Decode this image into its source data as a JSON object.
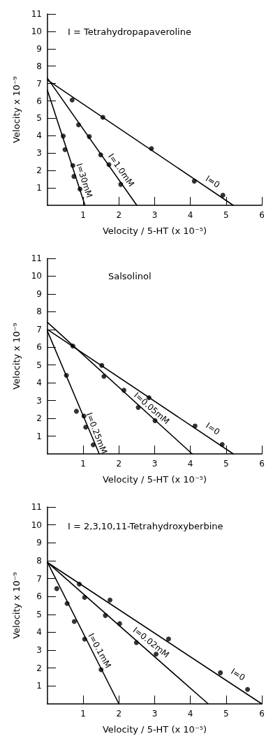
{
  "chart_data": [
    {
      "type": "scatter",
      "title": "I = Tetrahydropapaveroline",
      "xlabel": "Velocity / 5-HT (x 10⁻⁵)",
      "ylabel": "Velocity x 10⁻⁹",
      "xlim": [
        0,
        6
      ],
      "xticks": [
        1,
        2,
        3,
        4,
        5,
        6
      ],
      "ylim": [
        0,
        11
      ],
      "yticks": [
        1,
        2,
        3,
        4,
        5,
        6,
        7,
        8,
        9,
        10,
        11
      ],
      "series": [
        {
          "name": "I=0",
          "color": "#000000",
          "marker": "circle",
          "x": [
            0.69,
            1.55,
            2.91,
            4.11,
            4.91
          ],
          "values": [
            6.05,
            5.06,
            3.26,
            1.39,
            0.58
          ]
        },
        {
          "name": "I=1.0mM",
          "color": "#000000",
          "marker": "circle",
          "x": [
            0.87,
            1.17,
            1.49,
            1.72,
            2.05
          ],
          "values": [
            4.63,
            3.95,
            2.9,
            2.34,
            1.2
          ]
        },
        {
          "name": "I=30mM",
          "color": "#000000",
          "marker": "circle",
          "x": [
            0.44,
            0.49,
            0.71,
            0.74,
            0.91
          ],
          "values": [
            3.98,
            3.2,
            2.29,
            1.66,
            0.93
          ]
        },
        {
          "type": "line",
          "color": "#000000",
          "marker": "none",
          "x": [
            0,
            5.2
          ],
          "values": [
            7.2,
            0
          ]
        },
        {
          "type": "line",
          "color": "#000000",
          "marker": "none",
          "x": [
            0,
            2.5
          ],
          "values": [
            7.3,
            0
          ]
        },
        {
          "type": "line",
          "color": "#000000",
          "marker": "none",
          "x": [
            0,
            1.05
          ],
          "values": [
            6.6,
            0
          ]
        }
      ]
    },
    {
      "type": "scatter",
      "title": "Salsolinol",
      "xlabel": "Velocity / 5-HT (x 10⁻⁵)",
      "ylabel": "Velocity x 10⁻⁹",
      "xlim": [
        0,
        6
      ],
      "xticks": [
        1,
        2,
        3,
        4,
        5,
        6
      ],
      "ylim": [
        0,
        11
      ],
      "yticks": [
        1,
        2,
        3,
        4,
        5,
        6,
        7,
        8,
        9,
        10,
        11
      ],
      "series": [
        {
          "name": "I=0",
          "color": "#000000",
          "marker": "circle",
          "x": [
            0.71,
            1.52,
            2.84,
            4.13,
            4.89
          ],
          "values": [
            6.07,
            4.98,
            3.16,
            1.57,
            0.53
          ]
        },
        {
          "name": "I=0.05mM",
          "color": "#000000",
          "marker": "circle",
          "x": [
            1.58,
            2.14,
            2.54,
            3.01
          ],
          "values": [
            4.36,
            3.58,
            2.61,
            1.87
          ]
        },
        {
          "name": "I=0.25mM",
          "color": "#000000",
          "marker": "circle",
          "x": [
            0.53,
            0.81,
            1.02,
            1.07,
            1.28
          ],
          "values": [
            4.42,
            2.4,
            2.13,
            1.5,
            0.51
          ]
        },
        {
          "type": "line",
          "color": "#000000",
          "marker": "none",
          "x": [
            0,
            5.2
          ],
          "values": [
            7.0,
            0
          ]
        },
        {
          "type": "line",
          "color": "#000000",
          "marker": "none",
          "x": [
            0,
            4.05
          ],
          "values": [
            7.4,
            0
          ]
        },
        {
          "type": "line",
          "color": "#000000",
          "marker": "none",
          "x": [
            0,
            1.45
          ],
          "values": [
            6.9,
            0
          ]
        }
      ]
    },
    {
      "type": "scatter",
      "title": "I = 2,3,10,11-Tetrahydroxyberbine",
      "xlabel": "Velocity / 5-HT (x 10⁻⁵)",
      "ylabel": "Velocity x 10⁻⁹",
      "xlim": [
        0,
        6
      ],
      "xticks": [
        1,
        2,
        3,
        4,
        5,
        6
      ],
      "ylim": [
        0,
        11
      ],
      "yticks": [
        1,
        2,
        3,
        4,
        5,
        6,
        7,
        8,
        9,
        10,
        11
      ],
      "series": [
        {
          "name": "I=0",
          "color": "#000000",
          "marker": "circle",
          "x": [
            0.89,
            1.75,
            3.39,
            4.84,
            5.6
          ],
          "values": [
            6.69,
            5.8,
            3.63,
            1.74,
            0.81
          ]
        },
        {
          "name": "I=0.02mM",
          "color": "#000000",
          "marker": "circle",
          "x": [
            1.04,
            1.62,
            2.02,
            2.49,
            3.04
          ],
          "values": [
            5.95,
            4.94,
            4.48,
            3.42,
            2.78
          ]
        },
        {
          "name": "I=0.1mM",
          "color": "#000000",
          "marker": "circle",
          "x": [
            0.26,
            0.55,
            0.75,
            1.04,
            1.5
          ],
          "values": [
            6.44,
            5.61,
            4.6,
            3.62,
            1.91
          ]
        },
        {
          "type": "line",
          "color": "#000000",
          "marker": "none",
          "x": [
            0,
            6.0
          ],
          "values": [
            7.9,
            0
          ]
        },
        {
          "type": "line",
          "color": "#000000",
          "marker": "none",
          "x": [
            0,
            4.5
          ],
          "values": [
            7.9,
            0
          ]
        },
        {
          "type": "line",
          "color": "#000000",
          "marker": "none",
          "x": [
            0,
            2.0
          ],
          "values": [
            7.9,
            0
          ]
        }
      ]
    }
  ]
}
